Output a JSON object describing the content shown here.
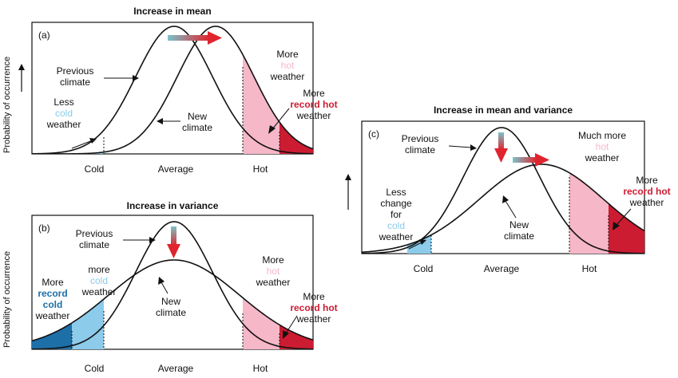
{
  "y_axis_label": "Probability of occurrence",
  "colors": {
    "cold_light": "#8ccbea",
    "cold_dark": "#1d6fa8",
    "hot_light": "#f6b7c8",
    "hot_dark": "#cc1c32",
    "arrow": "#e0242e",
    "arrow_fade": "#7ac3c9",
    "curve": "#111111"
  },
  "axis_ticks": [
    "Cold",
    "Average",
    "Hot"
  ],
  "panel_a": {
    "title": "Increase in mean",
    "tag": "(a)",
    "previous_climate": [
      "Previous",
      "climate"
    ],
    "new_climate": [
      "New",
      "climate"
    ],
    "less_cold": {
      "l1": "Less",
      "l2": "cold",
      "l3": "weather"
    },
    "more_hot": {
      "l1": "More",
      "l2": "hot",
      "l3": "weather"
    },
    "more_record_hot": {
      "l1": "More",
      "l2": "record hot",
      "l3": "weather"
    }
  },
  "panel_b": {
    "title": "Increase in variance",
    "tag": "(b)",
    "previous_climate": [
      "Previous",
      "climate"
    ],
    "new_climate": [
      "New",
      "climate"
    ],
    "more_record_cold": {
      "l1": "More",
      "l2": "record",
      "l3": "cold",
      "l4": "weather"
    },
    "more_cold": {
      "l1": "more",
      "l2": "cold",
      "l3": "weather"
    },
    "more_hot": {
      "l1": "More",
      "l2": "hot",
      "l3": "weather"
    },
    "more_record_hot": {
      "l1": "More",
      "l2": "record hot",
      "l3": "weather"
    }
  },
  "panel_c": {
    "title": "Increase in mean and variance",
    "tag": "(c)",
    "previous_climate": [
      "Previous",
      "climate"
    ],
    "new_climate": [
      "New",
      "climate"
    ],
    "less_change_cold": {
      "l1": "Less",
      "l2": "change",
      "l3": "for",
      "l4": "cold",
      "l5": "weather"
    },
    "much_more_hot": {
      "l1": "Much more",
      "l2": "hot",
      "l3": "weather"
    },
    "more_record_hot": {
      "l1": "More",
      "l2": "record hot",
      "l3": "weather"
    }
  }
}
